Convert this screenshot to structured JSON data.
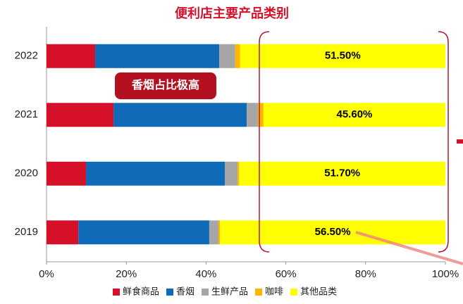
{
  "chart_data": {
    "type": "stacked-barh",
    "title": "便利店主要产品类别",
    "categories": [
      "2022",
      "2021",
      "2020",
      "2019"
    ],
    "series": [
      {
        "name": "鲜食商品",
        "color": "#d7102a",
        "values": [
          12.2,
          16.8,
          9.9,
          8.0
        ]
      },
      {
        "name": "香烟",
        "color": "#0f6bb8",
        "values": [
          31.1,
          33.4,
          34.8,
          32.8
        ]
      },
      {
        "name": "生鲜产品",
        "color": "#a6a6a6",
        "values": [
          4.0,
          2.8,
          3.2,
          2.3
        ]
      },
      {
        "name": "咖啡",
        "color": "#ffb400",
        "values": [
          1.2,
          1.4,
          0.4,
          0.4
        ]
      },
      {
        "name": "其他品类",
        "color": "#ffff00",
        "values": [
          51.5,
          45.6,
          51.7,
          56.5
        ],
        "value_labels": [
          "51.50%",
          "45.60%",
          "51.70%",
          "56.50%"
        ]
      }
    ],
    "xlim": [
      0,
      100
    ],
    "xticks": [
      {
        "value": 0,
        "label": "0%"
      },
      {
        "value": 20,
        "label": "20%"
      },
      {
        "value": 40,
        "label": "40%"
      },
      {
        "value": 60,
        "label": "60%"
      },
      {
        "value": 80,
        "label": "80%"
      },
      {
        "value": 100,
        "label": "100%"
      }
    ],
    "grid": false,
    "legend": "bottom",
    "annotation": "香烟占比极高"
  }
}
